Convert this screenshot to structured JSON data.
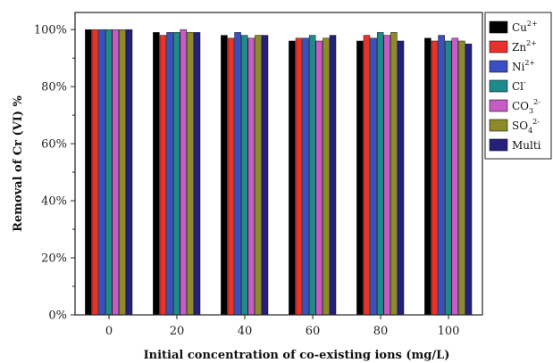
{
  "chart_data": {
    "type": "bar",
    "title": "",
    "xlabel": "Initial concentration of co-existing ions (mg/L)",
    "ylabel": "Removal of Cr (VI) %",
    "ylim": [
      0,
      1.06
    ],
    "yticks": [
      0,
      0.2,
      0.4,
      0.6,
      0.8,
      1.0
    ],
    "ytick_labels": [
      "0%",
      "20%",
      "40%",
      "60%",
      "80%",
      "100%"
    ],
    "categories": [
      "0",
      "20",
      "40",
      "60",
      "80",
      "100"
    ],
    "grid": false,
    "legend_position": "top-right",
    "series": [
      {
        "name": "Cu",
        "sup": "2+",
        "color": "#000000",
        "values": [
          1.0,
          0.99,
          0.98,
          0.96,
          0.96,
          0.97
        ]
      },
      {
        "name": "Zn",
        "sup": "2+",
        "color": "#e8322b",
        "values": [
          1.0,
          0.98,
          0.97,
          0.97,
          0.98,
          0.96
        ]
      },
      {
        "name": "Ni",
        "sup": "2+",
        "color": "#3a4fc6",
        "values": [
          1.0,
          0.99,
          0.99,
          0.97,
          0.97,
          0.98
        ]
      },
      {
        "name": "Cl",
        "sup": "-",
        "color": "#1f8a8a",
        "values": [
          1.0,
          0.99,
          0.98,
          0.98,
          0.99,
          0.96
        ]
      },
      {
        "name": "CO",
        "sub": "3",
        "sup": "2-",
        "color": "#c75bc6",
        "values": [
          1.0,
          1.0,
          0.97,
          0.96,
          0.98,
          0.97
        ]
      },
      {
        "name": "SO",
        "sub": "4",
        "sup": "2-",
        "color": "#8c8a2a",
        "values": [
          1.0,
          0.99,
          0.98,
          0.97,
          0.99,
          0.96
        ]
      },
      {
        "name": "Multi",
        "color": "#25207a",
        "values": [
          1.0,
          0.99,
          0.98,
          0.98,
          0.96,
          0.95
        ]
      }
    ]
  }
}
